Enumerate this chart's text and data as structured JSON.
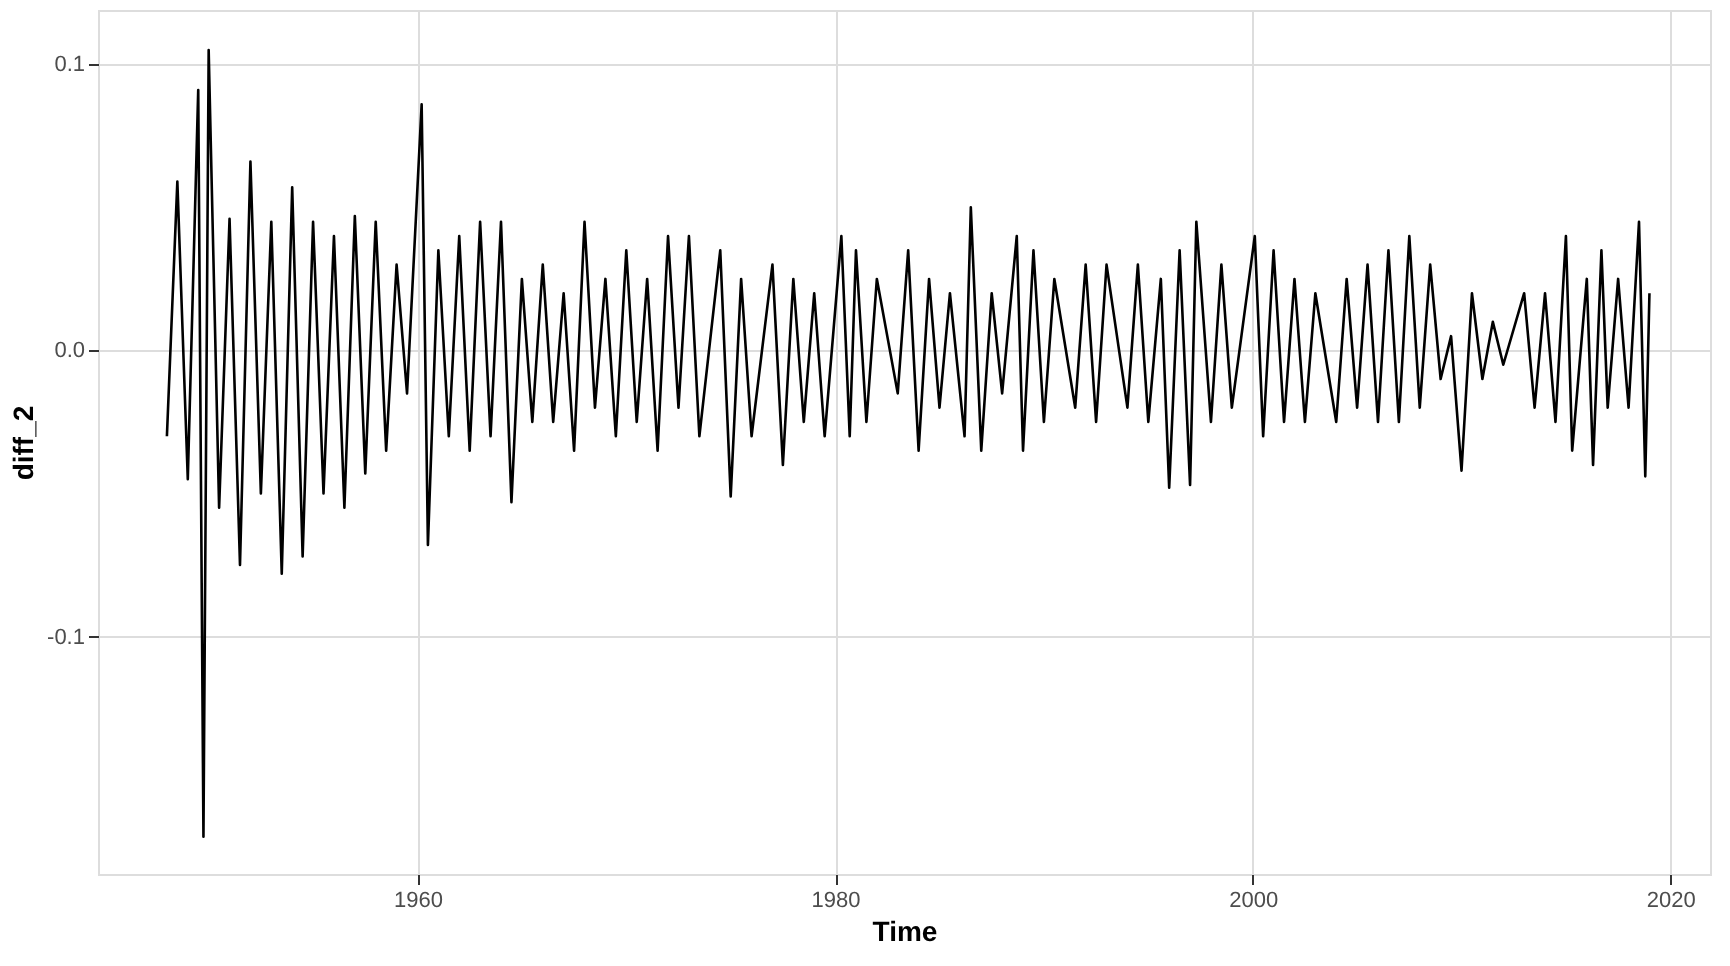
{
  "chart_data": {
    "type": "line",
    "xlabel": "Time",
    "ylabel": "diff_2",
    "xlim": [
      1944.7,
      2021.9
    ],
    "xticks": [
      1960,
      1980,
      2000,
      2020
    ],
    "ylim": [
      -0.183,
      0.119
    ],
    "yticks": [
      {
        "value": -0.1,
        "label": "-0.1"
      },
      {
        "value": 0.0,
        "label": "0.0"
      },
      {
        "value": 0.1,
        "label": "0.1"
      }
    ],
    "grid": true,
    "legend": false,
    "marker": "none",
    "line_style": "solid",
    "series": [
      {
        "color": "#000000",
        "x": [
          1948.0,
          1948.5,
          1949.0,
          1949.5,
          1949.75,
          1950.0,
          1950.5,
          1951.0,
          1951.5,
          1952.0,
          1952.5,
          1953.0,
          1953.5,
          1954.0,
          1954.5,
          1955.0,
          1955.5,
          1956.0,
          1956.5,
          1957.0,
          1957.5,
          1958.0,
          1958.5,
          1959.0,
          1959.5,
          1960.2,
          1960.5,
          1961.0,
          1961.5,
          1962.0,
          1962.5,
          1963.0,
          1963.5,
          1964.0,
          1964.5,
          1965.0,
          1965.5,
          1966.0,
          1966.5,
          1967.0,
          1967.5,
          1968.0,
          1968.5,
          1969.0,
          1969.5,
          1970.0,
          1970.5,
          1971.0,
          1971.5,
          1972.0,
          1972.5,
          1973.0,
          1973.5,
          1974.5,
          1975.0,
          1975.5,
          1976.0,
          1977.0,
          1977.5,
          1978.0,
          1978.5,
          1979.0,
          1979.5,
          1980.3,
          1980.7,
          1981.0,
          1981.5,
          1982.0,
          1983.0,
          1983.5,
          1984.0,
          1984.5,
          1985.0,
          1985.5,
          1986.2,
          1986.5,
          1987.0,
          1987.5,
          1988.0,
          1988.7,
          1989.0,
          1989.5,
          1990.0,
          1990.5,
          1991.5,
          1992.0,
          1992.5,
          1993.0,
          1994.0,
          1994.5,
          1995.0,
          1995.6,
          1996.0,
          1996.5,
          1997.0,
          1997.3,
          1998.0,
          1998.5,
          1999.0,
          2000.1,
          2000.5,
          2001.0,
          2001.5,
          2002.0,
          2002.5,
          2003.0,
          2004.0,
          2004.5,
          2005.0,
          2005.5,
          2006.0,
          2006.5,
          2007.0,
          2007.5,
          2008.0,
          2008.5,
          2009.0,
          2009.5,
          2010.0,
          2010.5,
          2011.0,
          2011.5,
          2012.0,
          2013.0,
          2013.5,
          2014.0,
          2014.5,
          2015.0,
          2015.3,
          2016.0,
          2016.3,
          2016.7,
          2017.0,
          2017.5,
          2018.0,
          2018.5,
          2018.8,
          2019.0
        ],
        "values": [
          -0.03,
          0.059,
          -0.045,
          0.091,
          -0.17,
          0.105,
          -0.055,
          0.046,
          -0.075,
          0.066,
          -0.05,
          0.045,
          -0.078,
          0.057,
          -0.072,
          0.045,
          -0.05,
          0.04,
          -0.055,
          0.047,
          -0.043,
          0.045,
          -0.035,
          0.03,
          -0.015,
          0.086,
          -0.068,
          0.035,
          -0.03,
          0.04,
          -0.035,
          0.045,
          -0.03,
          0.045,
          -0.053,
          0.025,
          -0.025,
          0.03,
          -0.025,
          0.02,
          -0.035,
          0.045,
          -0.02,
          0.025,
          -0.03,
          0.035,
          -0.025,
          0.025,
          -0.035,
          0.04,
          -0.02,
          0.04,
          -0.03,
          0.035,
          -0.051,
          0.025,
          -0.03,
          0.03,
          -0.04,
          0.025,
          -0.025,
          0.02,
          -0.03,
          0.04,
          -0.03,
          0.035,
          -0.025,
          0.025,
          -0.015,
          0.035,
          -0.035,
          0.025,
          -0.02,
          0.02,
          -0.03,
          0.05,
          -0.035,
          0.02,
          -0.015,
          0.04,
          -0.035,
          0.035,
          -0.025,
          0.025,
          -0.02,
          0.03,
          -0.025,
          0.03,
          -0.02,
          0.03,
          -0.025,
          0.025,
          -0.048,
          0.035,
          -0.047,
          0.045,
          -0.025,
          0.03,
          -0.02,
          0.04,
          -0.03,
          0.035,
          -0.025,
          0.025,
          -0.025,
          0.02,
          -0.025,
          0.025,
          -0.02,
          0.03,
          -0.025,
          0.035,
          -0.025,
          0.04,
          -0.02,
          0.03,
          -0.01,
          0.005,
          -0.042,
          0.02,
          -0.01,
          0.01,
          -0.005,
          0.02,
          -0.02,
          0.02,
          -0.025,
          0.04,
          -0.035,
          0.025,
          -0.04,
          0.035,
          -0.02,
          0.025,
          -0.02,
          0.045,
          -0.044,
          0.02
        ]
      }
    ]
  }
}
